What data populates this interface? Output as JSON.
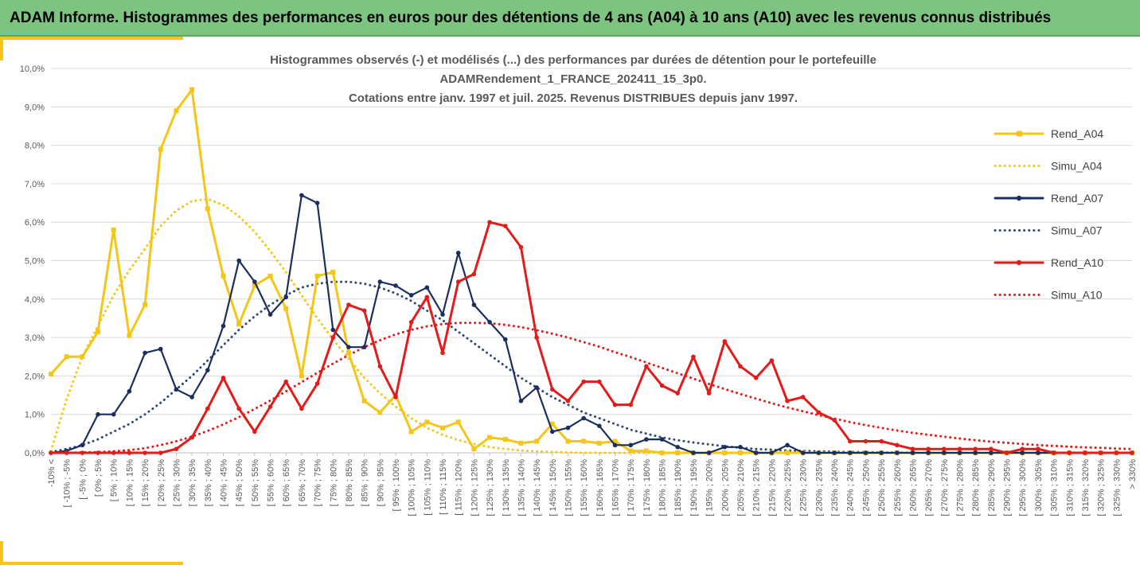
{
  "header": {
    "title": "ADAM Informe. Histogrammes des performances en euros pour des détentions de 4 ans (A04) à 10 ans (A10) avec les revenus connus distribués"
  },
  "chart_data": {
    "type": "line",
    "title_lines": [
      "Histogrammes observés (-) et modélisés (...) des performances par durées de détention pour le portefeuille",
      "ADAMRendement_1_FRANCE_202411_15_3p0.",
      "Cotations entre janv. 1997 et juil. 2025. Revenus DISTRIBUES depuis janv 1997."
    ],
    "xlabel": "",
    "ylabel": "",
    "ylim": [
      0,
      10
    ],
    "y_ticks": [
      "0,0%",
      "1,0%",
      "2,0%",
      "3,0%",
      "4,0%",
      "5,0%",
      "6,0%",
      "7,0%",
      "8,0%",
      "9,0%",
      "10,0%"
    ],
    "grid": "horizontal",
    "legend_position": "right",
    "categories": [
      "-10% <",
      "[ -10% ; -5%",
      "[ -5% ; 0%",
      "[ 0% ; 5%",
      "[ 5% ; 10%",
      "[ 10% ; 15%",
      "[ 15% ; 20%",
      "[ 20% ; 25%",
      "[ 25% ; 30%",
      "[ 30% ; 35%",
      "[ 35% ; 40%",
      "[ 40% ; 45%",
      "[ 45% ; 50%",
      "[ 50% ; 55%",
      "[ 55% ; 60%",
      "[ 60% ; 65%",
      "[ 65% ; 70%",
      "[ 70% ; 75%",
      "[ 75% ; 80%",
      "[ 80% ; 85%",
      "[ 85% ; 90%",
      "[ 90% ; 95%",
      "[ 95% ; 100%",
      "[ 100% ; 105%",
      "[ 105% ; 110%",
      "[ 110% ; 115%",
      "[ 115% ; 120%",
      "[ 120% ; 125%",
      "[ 125% ; 130%",
      "[ 130% ; 135%",
      "[ 135% ; 140%",
      "[ 140% ; 145%",
      "[ 145% ; 150%",
      "[ 150% ; 155%",
      "[ 155% ; 160%",
      "[ 160% ; 165%",
      "[ 165% ; 170%",
      "[ 170% ; 175%",
      "[ 175% ; 180%",
      "[ 180% ; 185%",
      "[ 185% ; 190%",
      "[ 190% ; 195%",
      "[ 195% ; 200%",
      "[ 200% ; 205%",
      "[ 205% ; 210%",
      "[ 210% ; 215%",
      "[ 215% ; 220%",
      "[ 220% ; 225%",
      "[ 225% ; 230%",
      "[ 230% ; 235%",
      "[ 235% ; 240%",
      "[ 240% ; 245%",
      "[ 245% ; 250%",
      "[ 250% ; 255%",
      "[ 255% ; 260%",
      "[ 260% ; 265%",
      "[ 265% ; 270%",
      "[ 270% ; 275%",
      "[ 275% ; 280%",
      "[ 280% ; 285%",
      "[ 285% ; 290%",
      "[ 290% ; 295%",
      "[ 295% ; 300%",
      "[ 300% ; 305%",
      "[ 305% ; 310%",
      "[ 310% ; 315%",
      "[ 315% ; 320%",
      "[ 320% ; 325%",
      "[ 325% ; 330%",
      "> 330%"
    ],
    "series": [
      {
        "name": "Rend_A04",
        "color": "#f5c518",
        "style": "solid",
        "marker": "square",
        "values": [
          2.05,
          2.5,
          2.5,
          3.15,
          5.8,
          3.05,
          3.85,
          7.9,
          8.9,
          9.45,
          6.35,
          4.6,
          3.35,
          4.35,
          4.6,
          3.75,
          2.0,
          4.6,
          4.7,
          2.6,
          1.35,
          1.05,
          1.5,
          0.55,
          0.8,
          0.65,
          0.8,
          0.1,
          0.4,
          0.35,
          0.25,
          0.3,
          0.75,
          0.3,
          0.3,
          0.25,
          0.3,
          0.05,
          0.05,
          0.0,
          0.0,
          0.0,
          0.0,
          0.0,
          0.0,
          0.0,
          0.0,
          0.0,
          0.0,
          0.0,
          0.0,
          0.0,
          0.0,
          0.0,
          0.0,
          0.0,
          0.0,
          0.0,
          0.0,
          0.0,
          0.0,
          0.0,
          0.0,
          0.0,
          0.0,
          0.0,
          0.0,
          0.0,
          0.0,
          0.0
        ]
      },
      {
        "name": "Simu_A04",
        "color": "#f5c518",
        "style": "dotted",
        "marker": "none",
        "values": [
          0.05,
          1.4,
          2.5,
          3.3,
          4.1,
          4.75,
          5.3,
          5.9,
          6.3,
          6.55,
          6.6,
          6.45,
          6.15,
          5.75,
          5.25,
          4.7,
          4.1,
          3.5,
          2.95,
          2.45,
          1.95,
          1.55,
          1.2,
          0.9,
          0.65,
          0.47,
          0.33,
          0.23,
          0.15,
          0.1,
          0.06,
          0.04,
          0.02,
          0.01,
          0.0,
          0.0,
          0.0,
          0.0,
          0.0,
          0.0,
          0.0,
          0.0,
          0.0,
          0.0,
          0.0,
          0.0,
          0.0,
          0.0,
          0.0,
          0.0,
          0.0,
          0.0,
          0.0,
          0.0,
          0.0,
          0.0,
          0.0,
          0.0,
          0.0,
          0.0,
          0.0,
          0.0,
          0.0,
          0.0,
          0.0,
          0.0,
          0.0,
          0.0,
          0.0,
          0.0
        ]
      },
      {
        "name": "Rend_A07",
        "color": "#1b2f5e",
        "style": "solid",
        "marker": "circle",
        "values": [
          0.0,
          0.05,
          0.2,
          1.0,
          1.0,
          1.6,
          2.6,
          2.7,
          1.65,
          1.45,
          2.15,
          3.3,
          5.0,
          4.45,
          3.6,
          4.05,
          6.7,
          6.5,
          3.2,
          2.75,
          2.75,
          4.45,
          4.35,
          4.1,
          4.3,
          3.6,
          5.2,
          3.85,
          3.4,
          2.95,
          1.35,
          1.7,
          0.55,
          0.65,
          0.9,
          0.7,
          0.2,
          0.2,
          0.35,
          0.35,
          0.15,
          0.0,
          0.0,
          0.15,
          0.15,
          0.0,
          0.0,
          0.2,
          0.0,
          0.0,
          0.0,
          0.0,
          0.0,
          0.0,
          0.0,
          0.0,
          0.0,
          0.0,
          0.0,
          0.0,
          0.0,
          0.0,
          0.0,
          0.0,
          0.0,
          0.0,
          0.0,
          0.0,
          0.0,
          0.0
        ]
      },
      {
        "name": "Simu_A07",
        "color": "#2d4a7a",
        "style": "dotted",
        "marker": "none",
        "values": [
          0.02,
          0.1,
          0.2,
          0.35,
          0.55,
          0.75,
          1.0,
          1.3,
          1.65,
          2.0,
          2.4,
          2.8,
          3.2,
          3.55,
          3.85,
          4.1,
          4.3,
          4.4,
          4.45,
          4.45,
          4.4,
          4.3,
          4.15,
          3.95,
          3.7,
          3.45,
          3.15,
          2.85,
          2.55,
          2.25,
          1.95,
          1.7,
          1.45,
          1.25,
          1.05,
          0.9,
          0.75,
          0.6,
          0.5,
          0.4,
          0.33,
          0.27,
          0.22,
          0.17,
          0.13,
          0.1,
          0.08,
          0.06,
          0.05,
          0.04,
          0.03,
          0.02,
          0.02,
          0.01,
          0.01,
          0.0,
          0.0,
          0.0,
          0.0,
          0.0,
          0.0,
          0.0,
          0.0,
          0.0,
          0.0,
          0.0,
          0.0,
          0.0,
          0.0,
          0.0
        ]
      },
      {
        "name": "Rend_A10",
        "color": "#e31b1b",
        "style": "solid",
        "marker": "circle",
        "values": [
          0.0,
          0.0,
          0.0,
          0.0,
          0.0,
          0.0,
          0.0,
          0.0,
          0.1,
          0.4,
          1.15,
          1.95,
          1.15,
          0.55,
          1.2,
          1.85,
          1.15,
          1.8,
          3.0,
          3.85,
          3.7,
          2.25,
          1.45,
          3.4,
          4.05,
          2.6,
          4.45,
          4.65,
          6.0,
          5.9,
          5.35,
          3.0,
          1.65,
          1.35,
          1.85,
          1.85,
          1.25,
          1.25,
          2.25,
          1.75,
          1.55,
          2.5,
          1.55,
          2.9,
          2.25,
          1.95,
          2.4,
          1.35,
          1.45,
          1.05,
          0.85,
          0.3,
          0.3,
          0.3,
          0.2,
          0.1,
          0.1,
          0.1,
          0.1,
          0.1,
          0.1,
          0.0,
          0.1,
          0.1,
          0.0,
          0.0,
          0.0,
          0.0,
          0.0,
          0.0
        ]
      },
      {
        "name": "Simu_A10",
        "color": "#e31b1b",
        "style": "dotted",
        "marker": "none",
        "values": [
          0.0,
          0.0,
          0.01,
          0.02,
          0.04,
          0.07,
          0.12,
          0.2,
          0.3,
          0.42,
          0.57,
          0.74,
          0.93,
          1.14,
          1.36,
          1.6,
          1.84,
          2.08,
          2.32,
          2.54,
          2.75,
          2.93,
          3.08,
          3.2,
          3.29,
          3.35,
          3.38,
          3.38,
          3.37,
          3.33,
          3.27,
          3.19,
          3.1,
          3.0,
          2.88,
          2.76,
          2.62,
          2.49,
          2.35,
          2.21,
          2.07,
          1.93,
          1.79,
          1.66,
          1.53,
          1.41,
          1.29,
          1.18,
          1.08,
          0.98,
          0.89,
          0.8,
          0.72,
          0.65,
          0.58,
          0.52,
          0.47,
          0.42,
          0.37,
          0.33,
          0.29,
          0.26,
          0.23,
          0.2,
          0.18,
          0.16,
          0.14,
          0.13,
          0.11,
          0.1
        ]
      }
    ]
  }
}
